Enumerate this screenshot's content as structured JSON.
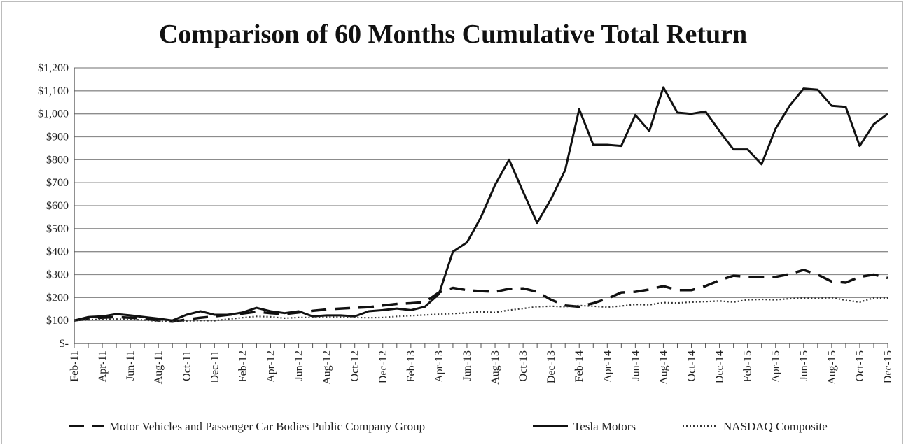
{
  "chart_data": {
    "type": "line",
    "title": "Comparison of 60 Months Cumulative Total Return",
    "xlabel": "",
    "ylabel": "",
    "ylim": [
      0,
      1200
    ],
    "yticks": [
      0,
      100,
      200,
      300,
      400,
      500,
      600,
      700,
      800,
      900,
      1000,
      1100,
      1200
    ],
    "ytick_labels": [
      "$-",
      "$100",
      "$200",
      "$300",
      "$400",
      "$500",
      "$600",
      "$700",
      "$800",
      "$900",
      "$1,000",
      "$1,100",
      "$1,200"
    ],
    "grid": true,
    "legend_position": "bottom",
    "x": [
      "Feb-11",
      "Mar-11",
      "Apr-11",
      "May-11",
      "Jun-11",
      "Jul-11",
      "Aug-11",
      "Sep-11",
      "Oct-11",
      "Nov-11",
      "Dec-11",
      "Jan-12",
      "Feb-12",
      "Mar-12",
      "Apr-12",
      "May-12",
      "Jun-12",
      "Jul-12",
      "Aug-12",
      "Sep-12",
      "Oct-12",
      "Nov-12",
      "Dec-12",
      "Jan-13",
      "Feb-13",
      "Mar-13",
      "Apr-13",
      "May-13",
      "Jun-13",
      "Jul-13",
      "Aug-13",
      "Sep-13",
      "Oct-13",
      "Nov-13",
      "Dec-13",
      "Jan-14",
      "Feb-14",
      "Mar-14",
      "Apr-14",
      "May-14",
      "Jun-14",
      "Jul-14",
      "Aug-14",
      "Sep-14",
      "Oct-14",
      "Nov-14",
      "Dec-14",
      "Jan-15",
      "Feb-15",
      "Mar-15",
      "Apr-15",
      "May-15",
      "Jun-15",
      "Jul-15",
      "Aug-15",
      "Sep-15",
      "Oct-15",
      "Nov-15",
      "Dec-15"
    ],
    "xtick_labels": [
      "Feb-11",
      "Apr-11",
      "Jun-11",
      "Aug-11",
      "Oct-11",
      "Dec-11",
      "Feb-12",
      "Apr-12",
      "Jun-12",
      "Aug-12",
      "Oct-12",
      "Dec-12",
      "Feb-13",
      "Apr-13",
      "Jun-13",
      "Aug-13",
      "Oct-13",
      "Dec-13",
      "Feb-14",
      "Apr-14",
      "Jun-14",
      "Aug-14",
      "Oct-14",
      "Dec-14",
      "Feb-15",
      "Apr-15",
      "Jun-15",
      "Aug-15",
      "Oct-15",
      "Dec-15"
    ],
    "series": [
      {
        "name": "Motor Vehicles and Passenger Car Bodies Public Company Group",
        "style": "dashed",
        "color": "#111111",
        "values": [
          100,
          108,
          112,
          115,
          112,
          108,
          100,
          95,
          104,
          112,
          118,
          125,
          130,
          138,
          132,
          128,
          135,
          142,
          148,
          152,
          155,
          158,
          165,
          172,
          175,
          180,
          222,
          242,
          232,
          228,
          225,
          238,
          240,
          225,
          190,
          165,
          160,
          175,
          195,
          222,
          225,
          235,
          250,
          232,
          232,
          250,
          275,
          295,
          290,
          290,
          290,
          302,
          320,
          300,
          270,
          265,
          290,
          300,
          285
        ]
      },
      {
        "name": "Tesla Motors",
        "style": "solid",
        "color": "#111111",
        "values": [
          100,
          115,
          118,
          128,
          122,
          115,
          108,
          100,
          125,
          140,
          125,
          125,
          135,
          155,
          140,
          132,
          140,
          118,
          122,
          122,
          118,
          140,
          145,
          152,
          145,
          160,
          215,
          400,
          440,
          550,
          690,
          800,
          660,
          525,
          630,
          755,
          1020,
          865,
          865,
          860,
          995,
          925,
          1115,
          1005,
          1000,
          1010,
          925,
          845,
          845,
          780,
          935,
          1035,
          1110,
          1105,
          1035,
          1030,
          860,
          955,
          1000
        ]
      },
      {
        "name": "NASDAQ Composite",
        "style": "dotted",
        "color": "#333333",
        "values": [
          100,
          103,
          105,
          106,
          104,
          102,
          97,
          95,
          98,
          100,
          99,
          106,
          112,
          118,
          116,
          110,
          113,
          113,
          115,
          116,
          113,
          112,
          113,
          118,
          121,
          124,
          127,
          130,
          133,
          138,
          135,
          145,
          152,
          160,
          162,
          160,
          165,
          162,
          158,
          163,
          170,
          168,
          178,
          176,
          180,
          182,
          185,
          180,
          190,
          192,
          190,
          195,
          198,
          196,
          200,
          188,
          180,
          198,
          198
        ]
      }
    ]
  }
}
